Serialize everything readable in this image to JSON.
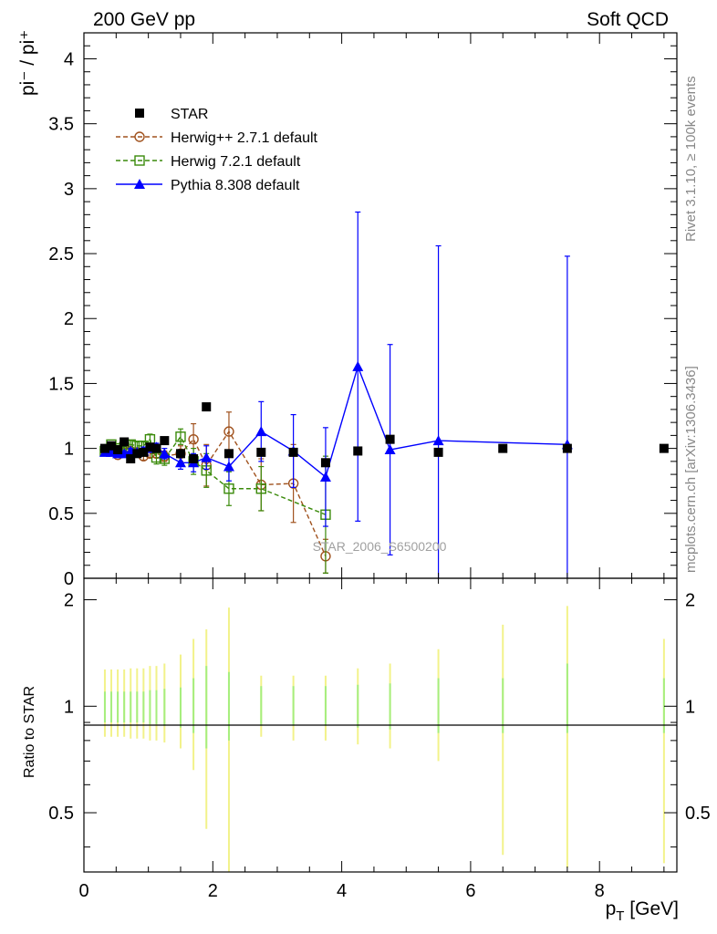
{
  "header": {
    "left": "200 GeV pp",
    "right": "Soft QCD"
  },
  "side_labels": {
    "rivet": "Rivet 3.1.10, ≥ 100k events",
    "mcplots": "mcplots.cern.ch [arXiv:1306.3436]"
  },
  "watermark": "STAR_2006_S6500200",
  "axis_labels": {
    "y_main": "pi⁻ / pi⁺",
    "y_ratio": "Ratio to STAR",
    "x": "p_T [GeV]"
  },
  "colors": {
    "star": "#000000",
    "herwig_pp": "#a0521e",
    "herwig7": "#3a8a0a",
    "pythia": "#0000ff",
    "band_green": "#a6ee7e",
    "band_yellow": "#f2f28a",
    "side_text": "#888888",
    "watermark": "#a0a0a0"
  },
  "chart_data": {
    "type": "scatter",
    "xlim": [
      0,
      9.2
    ],
    "ylim_main": [
      0,
      4.2
    ],
    "ylim_ratio": [
      0.34,
      2.3
    ],
    "ratio_log_scale": true,
    "x_ticks": [
      "0",
      "2",
      "4",
      "6",
      "8"
    ],
    "y_ticks_main": [
      "0",
      "0.5",
      "1",
      "1.5",
      "2",
      "2.5",
      "3",
      "3.5",
      "4"
    ],
    "y_ticks_ratio": [
      "0.5",
      "1",
      "2"
    ],
    "legend_position": "top-left",
    "series": [
      {
        "name": "STAR",
        "marker": "filled-square",
        "x": [
          0.325,
          0.425,
          0.525,
          0.625,
          0.725,
          0.825,
          0.925,
          1.025,
          1.125,
          1.25,
          1.5,
          1.7,
          1.9,
          2.25,
          2.75,
          3.25,
          3.75,
          4.25,
          4.75,
          5.5,
          6.5,
          7.5,
          9.0
        ],
        "y": [
          1.0,
          1.02,
          0.99,
          1.05,
          0.92,
          0.96,
          0.97,
          1.01,
          1.0,
          1.06,
          0.96,
          0.92,
          1.32,
          0.96,
          0.97,
          0.97,
          0.89,
          0.98,
          1.07,
          0.97,
          1.0,
          1.0,
          1.0
        ]
      },
      {
        "name": "Herwig++ 2.7.1 default",
        "marker": "open-circle",
        "line": "dashed",
        "x": [
          0.325,
          0.425,
          0.525,
          0.625,
          0.725,
          0.825,
          0.925,
          1.025,
          1.125,
          1.25,
          1.5,
          1.7,
          1.9,
          2.25,
          2.75,
          3.25,
          3.75
        ],
        "y": [
          0.99,
          1.0,
          0.95,
          0.98,
          0.98,
          0.97,
          0.94,
          0.96,
          0.96,
          0.94,
          0.96,
          1.07,
          0.87,
          1.13,
          0.72,
          0.73,
          0.17
        ],
        "yerr": [
          0.02,
          0.02,
          0.02,
          0.02,
          0.02,
          0.03,
          0.03,
          0.03,
          0.03,
          0.04,
          0.06,
          0.12,
          0.16,
          0.15,
          0.2,
          0.3,
          0.13
        ]
      },
      {
        "name": "Herwig 7.2.1 default",
        "marker": "open-square",
        "line": "dashed",
        "x": [
          0.325,
          0.425,
          0.525,
          0.625,
          0.725,
          0.825,
          0.925,
          1.025,
          1.125,
          1.25,
          1.5,
          1.7,
          1.9,
          2.25,
          2.75,
          3.75
        ],
        "y": [
          0.98,
          1.03,
          1.0,
          1.01,
          1.03,
          1.02,
          1.02,
          1.07,
          0.93,
          0.92,
          1.09,
          0.9,
          0.83,
          0.69,
          0.69,
          0.49
        ],
        "yerr": [
          0.02,
          0.02,
          0.02,
          0.02,
          0.03,
          0.03,
          0.03,
          0.04,
          0.05,
          0.05,
          0.06,
          0.1,
          0.13,
          0.13,
          0.17,
          0.45
        ]
      },
      {
        "name": "Pythia 8.308 default",
        "marker": "filled-triangle",
        "line": "solid",
        "x": [
          0.325,
          0.425,
          0.525,
          0.625,
          0.725,
          0.825,
          0.925,
          1.025,
          1.125,
          1.25,
          1.5,
          1.7,
          1.9,
          2.25,
          2.75,
          3.25,
          3.75,
          4.25,
          4.75,
          5.5,
          7.5
        ],
        "y": [
          0.97,
          0.97,
          0.96,
          0.96,
          0.98,
          0.97,
          0.98,
          1.0,
          1.01,
          0.96,
          0.89,
          0.89,
          0.93,
          0.86,
          1.13,
          0.98,
          0.78,
          1.63,
          0.99,
          1.06,
          1.03
        ],
        "yerr": [
          0.02,
          0.02,
          0.02,
          0.02,
          0.02,
          0.02,
          0.03,
          0.03,
          0.03,
          0.04,
          0.05,
          0.07,
          0.09,
          0.11,
          0.23,
          0.28,
          0.38,
          1.19,
          0.81,
          1.5,
          1.45
        ]
      }
    ],
    "ratio_bands": {
      "x": [
        0.325,
        0.425,
        0.525,
        0.625,
        0.725,
        0.825,
        0.925,
        1.025,
        1.125,
        1.25,
        1.5,
        1.7,
        1.9,
        2.25,
        2.75,
        3.25,
        3.75,
        4.25,
        4.75,
        5.5,
        6.5,
        7.5,
        9.0
      ],
      "inner_lo": [
        0.9,
        0.9,
        0.9,
        0.9,
        0.9,
        0.9,
        0.9,
        0.89,
        0.89,
        0.88,
        0.87,
        0.84,
        0.76,
        0.8,
        0.88,
        0.88,
        0.88,
        0.87,
        0.86,
        0.84,
        0.84,
        0.84,
        0.84
      ],
      "inner_hi": [
        1.1,
        1.1,
        1.1,
        1.1,
        1.1,
        1.1,
        1.1,
        1.11,
        1.11,
        1.12,
        1.13,
        1.2,
        1.3,
        1.25,
        1.14,
        1.14,
        1.14,
        1.15,
        1.16,
        1.2,
        1.2,
        1.32,
        1.2
      ],
      "outer_lo": [
        0.82,
        0.82,
        0.82,
        0.82,
        0.81,
        0.81,
        0.81,
        0.8,
        0.8,
        0.79,
        0.76,
        0.66,
        0.45,
        0.34,
        0.82,
        0.8,
        0.8,
        0.78,
        0.76,
        0.7,
        0.38,
        0.35,
        0.36
      ],
      "outer_hi": [
        1.27,
        1.27,
        1.27,
        1.27,
        1.28,
        1.28,
        1.28,
        1.3,
        1.3,
        1.32,
        1.4,
        1.55,
        1.65,
        1.9,
        1.22,
        1.22,
        1.22,
        1.28,
        1.32,
        1.45,
        1.7,
        1.92,
        1.55
      ]
    }
  }
}
